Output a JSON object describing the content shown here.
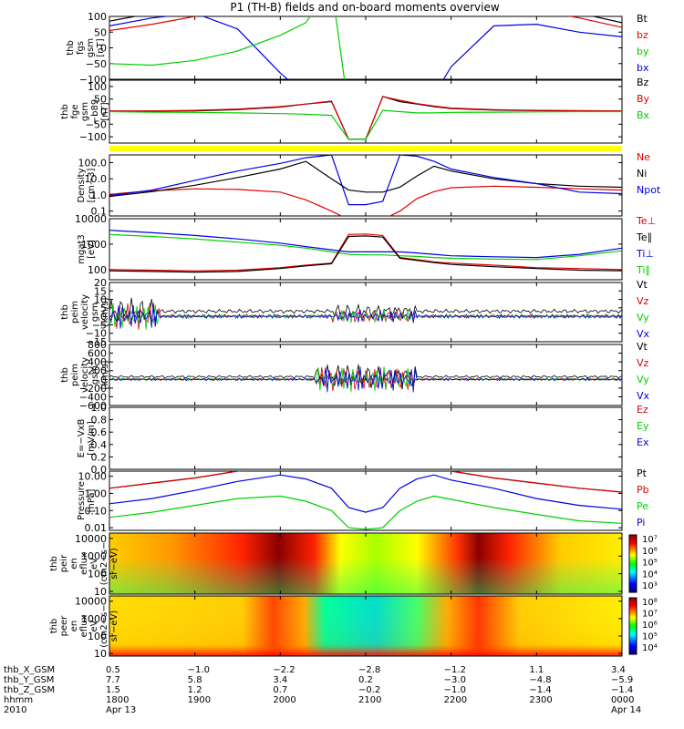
{
  "title": "P1 (TH-B) fields and on-board moments overview",
  "colors": {
    "black": "#000000",
    "red": "#e00000",
    "green": "#00d000",
    "blue": "#0000e0",
    "yellow": "#ffff00"
  },
  "panels": [
    {
      "id": "fgs",
      "ylabel": [
        "thb",
        "fgs",
        "gsm",
        "[nT]"
      ],
      "yscale": "linear",
      "ylim": [
        -100,
        100
      ],
      "ticks": [
        "100",
        "50",
        "0",
        "−50",
        "−100"
      ],
      "tickvals": [
        100,
        50,
        0,
        -50,
        -100
      ],
      "legend": [
        {
          "text": "Bt",
          "color": "black"
        },
        {
          "text": "bz",
          "color": "red"
        },
        {
          "text": "by",
          "color": "green"
        },
        {
          "text": "bx",
          "color": "blue"
        }
      ]
    },
    {
      "id": "fge",
      "ylabel": [
        "thb",
        "fge",
        "gsm",
        "−b89",
        "[nT]"
      ],
      "yscale": "linear",
      "ylim": [
        -125,
        125
      ],
      "ticks": [
        "100",
        "50",
        "0",
        "−50",
        "−100"
      ],
      "tickvals": [
        100,
        50,
        0,
        -50,
        -100
      ],
      "legend": [
        {
          "text": "Bz",
          "color": "black"
        },
        {
          "text": "By",
          "color": "red"
        },
        {
          "text": "Bx",
          "color": "green"
        }
      ]
    },
    {
      "id": "density",
      "ylabel": [
        "Density",
        "[cm−3]"
      ],
      "yscale": "log",
      "ylim": [
        0.05,
        300
      ],
      "ticks": [
        "100.0",
        "10.0",
        "1.0",
        "0.1"
      ],
      "tickvals": [
        100,
        10,
        1,
        0.1
      ],
      "legend": [
        {
          "text": "Ne",
          "color": "red"
        },
        {
          "text": "Ni",
          "color": "black"
        },
        {
          "text": "Npot",
          "color": "blue"
        }
      ]
    },
    {
      "id": "temp",
      "ylabel": [
        "mgat3",
        "[eV]"
      ],
      "yscale": "log",
      "ylim": [
        40,
        10000
      ],
      "ticks": [
        "10000",
        "1000",
        "100"
      ],
      "tickvals": [
        10000,
        1000,
        100
      ],
      "legend": [
        {
          "text": "Te⊥",
          "color": "red"
        },
        {
          "text": "Te∥",
          "color": "black"
        },
        {
          "text": "Ti⊥",
          "color": "blue"
        },
        {
          "text": "Ti∥",
          "color": "green"
        }
      ]
    },
    {
      "id": "vel_e",
      "ylabel": [
        "thb",
        "peim",
        "velocity",
        "gsm",
        "[km/s]"
      ],
      "yscale": "linear",
      "ylim": [
        -15,
        20
      ],
      "ticks": [
        "20",
        "15",
        "10",
        "5",
        "0",
        "−5",
        "−10",
        "−15"
      ],
      "tickvals": [
        20,
        15,
        10,
        5,
        0,
        -5,
        -10,
        -15
      ],
      "legend": [
        {
          "text": "Vt",
          "color": "black"
        },
        {
          "text": "Vz",
          "color": "red"
        },
        {
          "text": "Vy",
          "color": "green"
        },
        {
          "text": "Vx",
          "color": "blue"
        }
      ]
    },
    {
      "id": "vel_i",
      "ylabel": [
        "thb",
        "peim",
        "velocity",
        "gsm",
        "[km/s]"
      ],
      "yscale": "linear",
      "ylim": [
        -600,
        800
      ],
      "ticks": [
        "800",
        "600",
        "400",
        "200",
        "0",
        "−200",
        "−400",
        "−600"
      ],
      "tickvals": [
        800,
        600,
        400,
        200,
        0,
        -200,
        -400,
        -600
      ],
      "legend": [
        {
          "text": "Vt",
          "color": "black"
        },
        {
          "text": "Vz",
          "color": "red"
        },
        {
          "text": "Vy",
          "color": "green"
        },
        {
          "text": "Vx",
          "color": "blue"
        }
      ]
    },
    {
      "id": "efield",
      "ylabel": [
        "E=−VxB",
        "[mV/m]"
      ],
      "yscale": "linear",
      "ylim": [
        0,
        1
      ],
      "ticks": [
        "1.0",
        "0.8",
        "0.6",
        "0.4",
        "0.2",
        "0.0"
      ],
      "tickvals": [
        1,
        0.8,
        0.6,
        0.4,
        0.2,
        0
      ],
      "legend": [
        {
          "text": "Ez",
          "color": "red"
        },
        {
          "text": "Ey",
          "color": "green"
        },
        {
          "text": "Ex",
          "color": "blue"
        }
      ]
    },
    {
      "id": "pressure",
      "ylabel": [
        "Pressure",
        "[nPa]"
      ],
      "yscale": "log",
      "ylim": [
        0.007,
        20
      ],
      "ticks": [
        "10.00",
        "1.00",
        "0.10",
        "0.01"
      ],
      "tickvals": [
        10,
        1,
        0.1,
        0.01
      ],
      "legend": [
        {
          "text": "Pt",
          "color": "black"
        },
        {
          "text": "Pb",
          "color": "red"
        },
        {
          "text": "Pe",
          "color": "green"
        },
        {
          "text": "Pi",
          "color": "blue"
        }
      ]
    },
    {
      "id": "peir",
      "ylabel": [
        "thb",
        "peir",
        "en",
        "eflux",
        "eV",
        "(cm2−s−",
        "sr−eV)"
      ],
      "yscale": "log",
      "ylim": [
        7,
        20000
      ],
      "ticks": [
        "10000",
        "1000",
        "100",
        "10"
      ],
      "tickvals": [
        10000,
        1000,
        100,
        10
      ],
      "colorbar": [
        "10⁷",
        "10⁶",
        "10⁵",
        "10⁴",
        "10³"
      ]
    },
    {
      "id": "peer",
      "ylabel": [
        "thb",
        "peer",
        "en",
        "eflux",
        "eV",
        "(cm2−s−",
        "sr−eV)"
      ],
      "yscale": "log",
      "ylim": [
        7,
        20000
      ],
      "ticks": [
        "10000",
        "1000",
        "100",
        "10"
      ],
      "tickvals": [
        10000,
        1000,
        100,
        10
      ],
      "colorbar": [
        "10⁸",
        "10⁷",
        "10⁶",
        "10⁵",
        "10⁴"
      ]
    }
  ],
  "xaxis": {
    "rows": [
      {
        "label": "thb_X_GSM",
        "values": [
          "0.5",
          "−1.0",
          "−2.2",
          "−2.8",
          "−1.2",
          "1.1",
          "3.4"
        ]
      },
      {
        "label": "thb_Y_GSM",
        "values": [
          "7.7",
          "5.8",
          "3.4",
          "0.2",
          "−3.0",
          "−4.8",
          "−5.9"
        ]
      },
      {
        "label": "thb_Z_GSM",
        "values": [
          "1.5",
          "1.2",
          "0.7",
          "−0.2",
          "−1.0",
          "−1.4",
          "−1.4"
        ]
      },
      {
        "label": "hhmm",
        "values": [
          "1800",
          "1900",
          "2000",
          "2100",
          "2200",
          "2300",
          "0000"
        ]
      },
      {
        "label": "2010",
        "values": [
          "Apr 13",
          "",
          "",
          "",
          "",
          "",
          "Apr 14"
        ]
      }
    ],
    "hours": [
      18,
      19,
      20,
      21,
      22,
      23,
      24
    ]
  },
  "chart_data": {
    "type": "line",
    "title": "P1 (TH-B) fields and on-board moments overview",
    "x_hours": [
      18,
      18.5,
      19,
      19.5,
      20,
      20.3,
      20.6,
      20.8,
      21,
      21.2,
      21.4,
      21.6,
      21.8,
      22,
      22.5,
      23,
      23.5,
      24
    ],
    "series": [
      {
        "panel": "fgs",
        "name": "bx",
        "values": [
          70,
          95,
          110,
          60,
          -80,
          -150,
          -200,
          -200,
          -200,
          -200,
          -200,
          -200,
          -150,
          -60,
          70,
          75,
          50,
          35
        ]
      },
      {
        "panel": "fgs",
        "name": "by",
        "values": [
          -50,
          -55,
          -40,
          -10,
          40,
          80,
          200,
          -200,
          -200,
          -200,
          -200,
          -200,
          -200,
          -200,
          -200,
          -200,
          -150,
          -100
        ]
      },
      {
        "panel": "fgs",
        "name": "bz",
        "values": [
          55,
          75,
          100,
          130,
          150,
          170,
          200,
          200,
          200,
          200,
          200,
          200,
          200,
          200,
          160,
          120,
          95,
          65
        ]
      },
      {
        "panel": "fgs",
        "name": "Bt",
        "values": [
          85,
          110,
          130,
          150,
          170,
          190,
          200,
          200,
          200,
          200,
          200,
          200,
          200,
          200,
          180,
          140,
          110,
          80
        ]
      },
      {
        "panel": "fge",
        "name": "Bz",
        "values": [
          2,
          2,
          3,
          8,
          18,
          30,
          40,
          -110,
          -110,
          60,
          40,
          30,
          20,
          12,
          6,
          4,
          3,
          2
        ]
      },
      {
        "panel": "fge",
        "name": "By",
        "values": [
          2,
          3,
          5,
          10,
          20,
          30,
          42,
          -110,
          -110,
          60,
          45,
          32,
          22,
          14,
          8,
          5,
          4,
          3
        ]
      },
      {
        "panel": "fge",
        "name": "Bx",
        "values": [
          0,
          -2,
          -3,
          -5,
          -8,
          -10,
          -15,
          -110,
          -110,
          5,
          0,
          -5,
          -5,
          -3,
          -2,
          -1,
          0,
          0
        ]
      },
      {
        "panel": "density",
        "name": "Ne",
        "values": [
          1.1,
          1.8,
          2.4,
          2.2,
          1.5,
          0.5,
          0.1,
          0.03,
          0.03,
          0.03,
          0.1,
          0.6,
          1.6,
          2.8,
          3.5,
          3.0,
          2.4,
          2.0
        ]
      },
      {
        "panel": "density",
        "name": "Ni",
        "values": [
          0.8,
          1.6,
          4,
          12,
          40,
          120,
          10,
          2,
          1.5,
          1.5,
          3,
          15,
          60,
          30,
          10,
          5,
          3.5,
          3
        ]
      },
      {
        "panel": "density",
        "name": "Npot",
        "values": [
          0.9,
          2,
          8,
          30,
          90,
          200,
          300,
          0.25,
          0.25,
          0.4,
          300,
          250,
          120,
          40,
          12,
          5,
          1.5,
          1.2
        ]
      },
      {
        "panel": "temp",
        "name": "Ti⊥",
        "values": [
          3500,
          2800,
          2200,
          1600,
          1100,
          800,
          600,
          500,
          500,
          500,
          500,
          450,
          400,
          350,
          320,
          300,
          400,
          700
        ]
      },
      {
        "panel": "temp",
        "name": "Ti∥",
        "values": [
          2400,
          2000,
          1600,
          1200,
          900,
          700,
          500,
          400,
          380,
          380,
          350,
          330,
          300,
          280,
          260,
          250,
          350,
          550
        ]
      },
      {
        "panel": "temp",
        "name": "Te⊥",
        "values": [
          100,
          95,
          90,
          95,
          120,
          150,
          180,
          2400,
          2500,
          2200,
          300,
          250,
          200,
          180,
          150,
          120,
          110,
          100
        ]
      },
      {
        "panel": "temp",
        "name": "Te∥",
        "values": [
          90,
          85,
          80,
          85,
          110,
          140,
          170,
          2000,
          2100,
          1900,
          280,
          230,
          190,
          160,
          130,
          110,
          95,
          90
        ]
      },
      {
        "panel": "pressure",
        "name": "Pt",
        "values": [
          2,
          4,
          8,
          20,
          40,
          60,
          80,
          90,
          90,
          90,
          80,
          60,
          40,
          20,
          8,
          4,
          2,
          1.2
        ]
      },
      {
        "panel": "pressure",
        "name": "Pb",
        "values": [
          2,
          4,
          8,
          20,
          40,
          60,
          80,
          90,
          90,
          90,
          80,
          60,
          40,
          20,
          8,
          4,
          2,
          1.2
        ]
      },
      {
        "panel": "pressure",
        "name": "Pi",
        "values": [
          0.25,
          0.5,
          1.5,
          5,
          12,
          7,
          2,
          0.15,
          0.08,
          0.15,
          2,
          7,
          12,
          6,
          2,
          0.5,
          0.2,
          0.12
        ]
      },
      {
        "panel": "pressure",
        "name": "Pe",
        "values": [
          0.04,
          0.08,
          0.2,
          0.5,
          0.7,
          0.35,
          0.1,
          0.01,
          0.008,
          0.01,
          0.1,
          0.35,
          0.7,
          0.45,
          0.15,
          0.06,
          0.025,
          0.018
        ]
      }
    ]
  }
}
